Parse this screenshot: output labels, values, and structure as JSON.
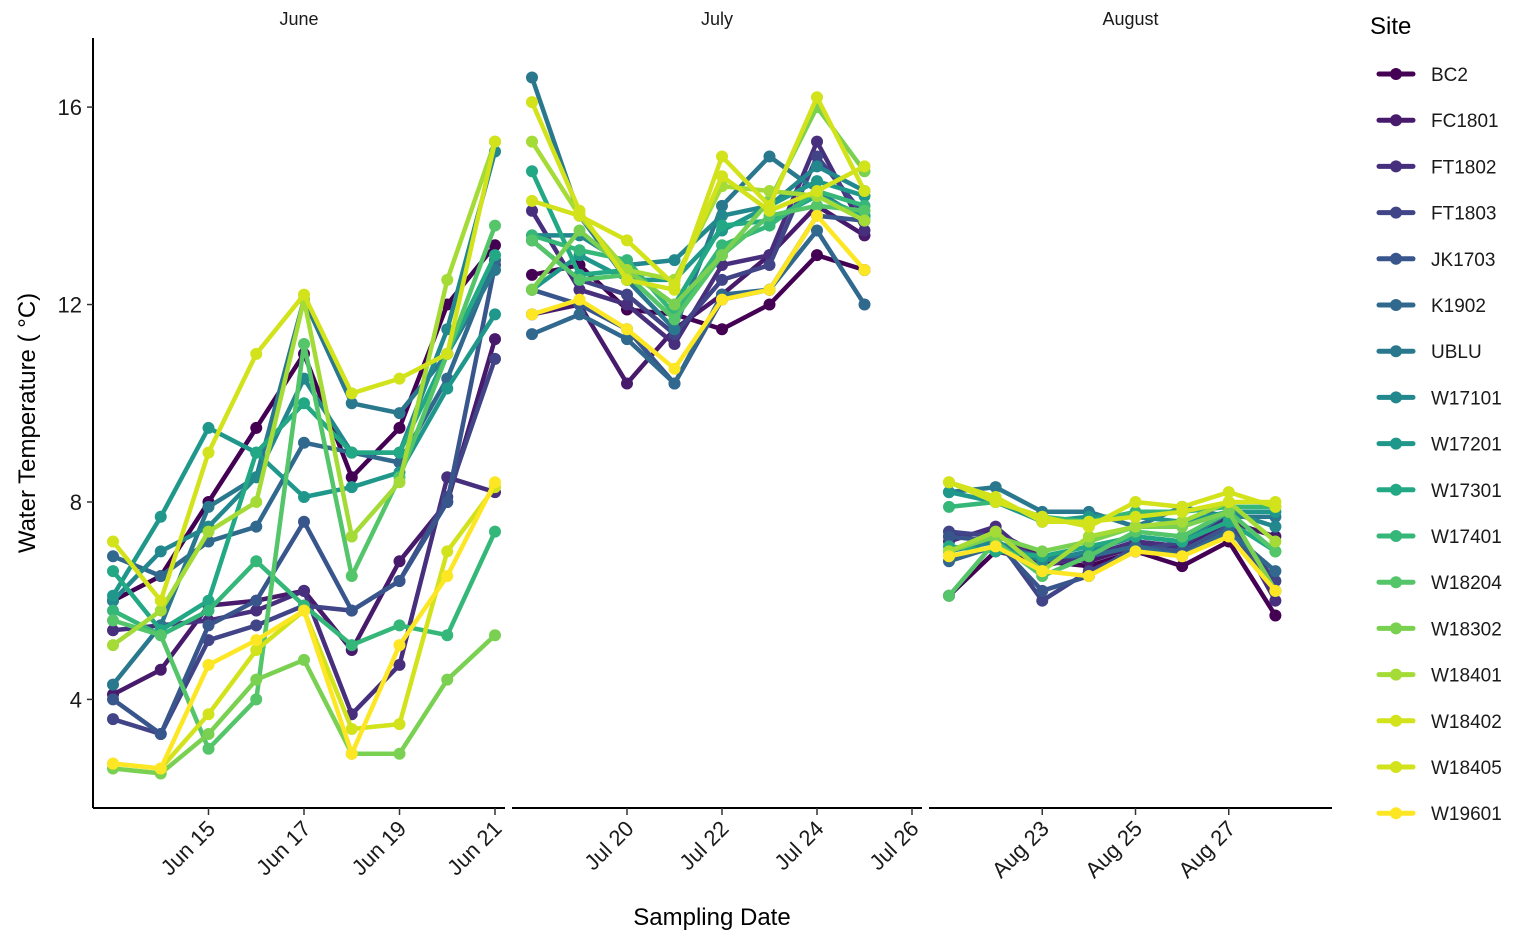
{
  "chart_data": {
    "type": "line",
    "title": "",
    "xlabel": "Sampling Date",
    "ylabel": "Water Temperature ( °C)",
    "ylim": [
      1.8,
      17.4
    ],
    "yticks": [
      4,
      8,
      12,
      16
    ],
    "legend_title": "Site",
    "legend_position": "right",
    "grid": false,
    "sites": [
      "BC2",
      "FC1801",
      "FT1802",
      "FT1803",
      "JK1703",
      "K1902",
      "UBLU",
      "W17101",
      "W17201",
      "W17301",
      "W17401",
      "W18204",
      "W18302",
      "W18401",
      "W18402",
      "W18405",
      "W19601"
    ],
    "colors": [
      "#440154",
      "#481A6C",
      "#472F7D",
      "#414487",
      "#39568C",
      "#31688E",
      "#2A788E",
      "#23888E",
      "#1F988B",
      "#22A884",
      "#35B779",
      "#54C568",
      "#7AD151",
      "#A5DB36",
      "#D2E21B",
      "#D2E21B",
      "#FDE725"
    ],
    "panels": [
      {
        "name": "June",
        "xlim": [
          "2021-06-13",
          "2021-06-21"
        ],
        "x": [
          "2021-06-13",
          "2021-06-14",
          "2021-06-15",
          "2021-06-16",
          "2021-06-17",
          "2021-06-18",
          "2021-06-19",
          "2021-06-20",
          "2021-06-21"
        ],
        "xticks": [
          {
            "date": "2021-06-15",
            "label": "Jun 15"
          },
          {
            "date": "2021-06-17",
            "label": "Jun 17"
          },
          {
            "date": "2021-06-19",
            "label": "Jun 19"
          },
          {
            "date": "2021-06-21",
            "label": "Jun 21"
          }
        ],
        "series": [
          [
            6.0,
            6.5,
            8.0,
            9.5,
            11.0,
            8.5,
            9.5,
            12.0,
            13.2
          ],
          [
            4.1,
            4.6,
            5.9,
            6.0,
            6.2,
            5.0,
            6.8,
            8.0,
            11.3
          ],
          [
            5.4,
            5.5,
            5.6,
            5.8,
            6.2,
            3.7,
            4.7,
            8.5,
            8.2
          ],
          [
            3.6,
            3.3,
            5.2,
            5.5,
            5.9,
            5.8,
            6.4,
            8.1,
            10.9
          ],
          [
            4.0,
            3.3,
            5.5,
            6.0,
            7.6,
            5.8,
            6.4,
            8.0,
            12.8
          ],
          [
            6.9,
            6.5,
            7.2,
            7.5,
            9.2,
            9.0,
            8.8,
            10.5,
            12.9
          ],
          [
            4.3,
            5.5,
            7.9,
            8.5,
            12.1,
            10.0,
            9.8,
            11.0,
            12.7
          ],
          [
            6.0,
            7.0,
            7.5,
            8.5,
            10.5,
            9.0,
            9.0,
            11.5,
            15.1
          ],
          [
            6.1,
            7.7,
            9.5,
            9.0,
            8.1,
            8.3,
            8.6,
            10.3,
            11.8
          ],
          [
            6.6,
            5.4,
            6.0,
            9.0,
            10.0,
            9.0,
            9.0,
            11.0,
            13.0
          ],
          [
            5.8,
            5.3,
            5.8,
            6.8,
            5.9,
            5.1,
            5.5,
            5.3,
            7.4
          ],
          [
            5.6,
            5.3,
            3.0,
            4.0,
            11.2,
            6.5,
            8.5,
            11.0,
            13.6
          ],
          [
            2.6,
            2.5,
            3.3,
            4.4,
            4.8,
            2.9,
            2.9,
            4.4,
            5.3
          ],
          [
            5.1,
            5.8,
            7.4,
            8.0,
            12.1,
            7.3,
            8.4,
            12.5,
            15.3
          ],
          [
            7.2,
            6.0,
            9.0,
            11.0,
            12.2,
            10.2,
            10.5,
            11.0,
            15.3
          ],
          [
            2.7,
            2.6,
            3.7,
            5.0,
            5.8,
            3.4,
            3.5,
            7.0,
            8.3
          ],
          [
            2.7,
            2.6,
            4.7,
            5.2,
            5.8,
            2.9,
            5.1,
            6.5,
            8.4
          ]
        ]
      },
      {
        "name": "July",
        "xlim": [
          "2021-07-18",
          "2021-07-26"
        ],
        "x": [
          "2021-07-18",
          "2021-07-19",
          "2021-07-20",
          "2021-07-21",
          "2021-07-22",
          "2021-07-23",
          "2021-07-24",
          "2021-07-25",
          "2021-07-26"
        ],
        "xticks": [
          {
            "date": "2021-07-20",
            "label": "Jul 20"
          },
          {
            "date": "2021-07-22",
            "label": "Jul 22"
          },
          {
            "date": "2021-07-24",
            "label": "Jul 24"
          },
          {
            "date": "2021-07-26",
            "label": "Jul 26"
          }
        ],
        "series": [
          [
            12.6,
            12.8,
            11.9,
            11.8,
            11.5,
            12.0,
            13.0,
            12.7,
            null
          ],
          [
            11.8,
            12.0,
            10.4,
            11.5,
            12.2,
            13.0,
            14.0,
            13.4,
            null
          ],
          [
            13.9,
            12.3,
            12.0,
            11.2,
            12.8,
            13.0,
            15.3,
            13.5,
            null
          ],
          [
            13.3,
            12.5,
            12.2,
            11.4,
            12.5,
            12.8,
            15.0,
            13.8,
            null
          ],
          [
            12.3,
            12.0,
            11.5,
            10.4,
            12.1,
            12.3,
            13.8,
            13.7,
            null
          ],
          [
            11.4,
            11.8,
            11.3,
            10.4,
            12.2,
            12.3,
            13.5,
            12.0,
            null
          ],
          [
            16.6,
            13.8,
            12.5,
            11.5,
            14.0,
            15.0,
            14.3,
            13.7,
            null
          ],
          [
            13.4,
            13.4,
            12.8,
            12.9,
            13.8,
            14.0,
            14.8,
            14.3,
            null
          ],
          [
            12.3,
            13.0,
            12.5,
            12.5,
            13.5,
            14.0,
            14.5,
            14.2,
            null
          ],
          [
            14.7,
            12.6,
            12.7,
            12.0,
            13.6,
            13.7,
            14.2,
            13.8,
            null
          ],
          [
            13.4,
            13.1,
            12.9,
            11.8,
            13.2,
            13.6,
            14.3,
            14.0,
            null
          ],
          [
            13.3,
            12.5,
            12.6,
            11.7,
            13.0,
            13.8,
            14.0,
            13.9,
            null
          ],
          [
            12.3,
            13.5,
            12.7,
            12.0,
            13.0,
            14.1,
            16.0,
            14.7,
            null
          ],
          [
            15.3,
            13.8,
            12.7,
            12.5,
            14.4,
            14.3,
            14.2,
            13.7,
            null
          ],
          [
            16.1,
            13.9,
            12.5,
            12.3,
            15.0,
            14.0,
            16.2,
            14.3,
            null
          ],
          [
            14.1,
            13.8,
            13.3,
            12.4,
            14.6,
            13.9,
            14.3,
            14.8,
            null
          ],
          [
            11.8,
            12.1,
            11.5,
            10.7,
            12.1,
            12.3,
            13.8,
            12.7,
            null
          ]
        ]
      },
      {
        "name": "August",
        "xlim": [
          "2021-08-21",
          "2021-08-29"
        ],
        "x": [
          "2021-08-21",
          "2021-08-22",
          "2021-08-23",
          "2021-08-24",
          "2021-08-25",
          "2021-08-26",
          "2021-08-27",
          "2021-08-28",
          "2021-08-29"
        ],
        "xticks": [
          {
            "date": "2021-08-23",
            "label": "Aug 23"
          },
          {
            "date": "2021-08-25",
            "label": "Aug 25"
          },
          {
            "date": "2021-08-27",
            "label": "Aug 27"
          }
        ],
        "series": [
          [
            6.1,
            7.0,
            6.8,
            6.7,
            7.0,
            6.7,
            7.2,
            5.7,
            null
          ],
          [
            7.3,
            7.4,
            6.9,
            6.8,
            7.1,
            7.1,
            7.6,
            7.3,
            null
          ],
          [
            7.2,
            7.5,
            6.7,
            6.9,
            7.2,
            7.1,
            7.7,
            6.0,
            null
          ],
          [
            7.4,
            7.3,
            6.0,
            6.6,
            7.0,
            7.2,
            7.6,
            6.4,
            null
          ],
          [
            7.3,
            7.2,
            6.2,
            6.5,
            7.1,
            7.0,
            7.5,
            6.2,
            null
          ],
          [
            6.8,
            7.1,
            6.9,
            6.9,
            7.1,
            6.9,
            7.4,
            6.6,
            null
          ],
          [
            8.2,
            8.3,
            7.8,
            7.8,
            7.5,
            7.9,
            7.7,
            7.7,
            null
          ],
          [
            7.0,
            7.2,
            6.8,
            7.0,
            7.3,
            7.2,
            7.8,
            7.5,
            null
          ],
          [
            8.2,
            8.0,
            7.6,
            7.7,
            7.7,
            7.6,
            7.8,
            7.8,
            null
          ],
          [
            7.1,
            7.0,
            6.9,
            7.1,
            7.3,
            7.2,
            7.6,
            7.0,
            null
          ],
          [
            7.9,
            8.0,
            7.7,
            7.6,
            7.8,
            7.8,
            7.9,
            7.9,
            null
          ],
          [
            6.1,
            7.2,
            6.5,
            6.9,
            7.4,
            7.3,
            7.8,
            7.0,
            null
          ],
          [
            7.0,
            7.3,
            7.0,
            7.2,
            7.5,
            7.5,
            7.8,
            6.2,
            null
          ],
          [
            7.0,
            7.4,
            6.6,
            7.3,
            7.5,
            7.6,
            8.0,
            7.2,
            null
          ],
          [
            8.4,
            8.0,
            7.7,
            7.5,
            8.0,
            7.9,
            8.2,
            7.9,
            null
          ],
          [
            8.4,
            8.1,
            7.6,
            7.6,
            7.7,
            7.8,
            8.0,
            8.0,
            null
          ],
          [
            6.9,
            7.1,
            6.6,
            6.5,
            7.0,
            6.9,
            7.3,
            6.2,
            null
          ]
        ]
      }
    ]
  }
}
